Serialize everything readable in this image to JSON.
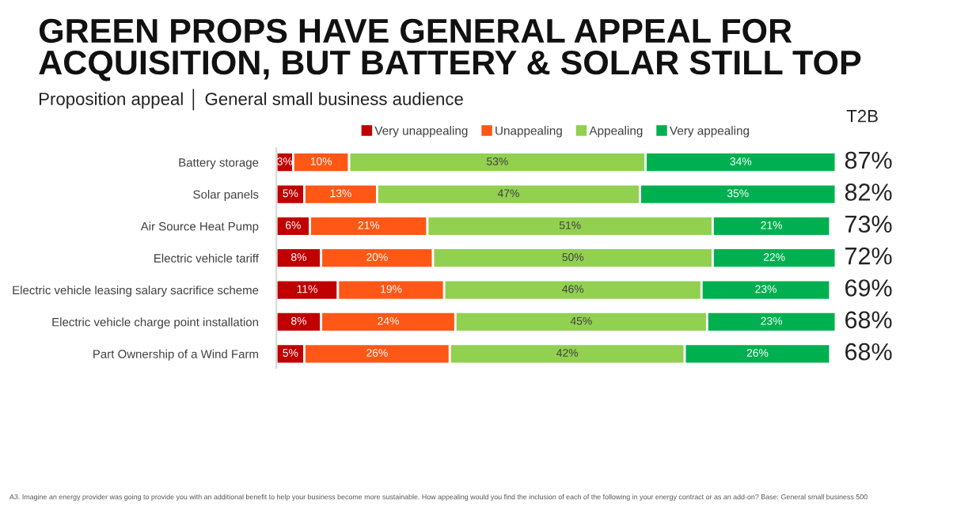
{
  "chart_data": {
    "type": "bar",
    "orientation": "horizontal",
    "stacked": true,
    "title": "GREEN PROPS HAVE GENERAL APPEAL FOR\nACQUISITION, BUT BATTERY & SOLAR STILL TOP",
    "subtitle": "Proposition appeal │ General small business audience",
    "categories": [
      "Battery storage",
      "Solar panels",
      "Air Source Heat Pump",
      "Electric vehicle tariff",
      "Electric vehicle leasing salary sacrifice scheme",
      "Electric vehicle charge point installation",
      "Part Ownership of a Wind Farm"
    ],
    "series": [
      {
        "name": "Very unappealing",
        "color": "#c00000",
        "values": [
          3,
          5,
          6,
          8,
          11,
          8,
          5
        ],
        "value_labels": [
          "3%",
          "5%",
          "6%",
          "8%",
          "11%",
          "8%",
          "5%"
        ]
      },
      {
        "name": "Unappealing",
        "color": "#fe5716",
        "values": [
          10,
          13,
          21,
          20,
          19,
          24,
          26
        ],
        "value_labels": [
          "10%",
          "13%",
          "21%",
          "20%",
          "19%",
          "24%",
          "26%"
        ]
      },
      {
        "name": "Appealing",
        "color": "#92d050",
        "values": [
          53,
          47,
          51,
          50,
          46,
          45,
          42
        ],
        "value_labels": [
          "53%",
          "47%",
          "51%",
          "50%",
          "46%",
          "45%",
          "42%"
        ]
      },
      {
        "name": "Very appealing",
        "color": "#00b050",
        "values": [
          34,
          35,
          21,
          22,
          23,
          23,
          26
        ],
        "value_labels": [
          "34%",
          "35%",
          "21%",
          "22%",
          "23%",
          "23%",
          "26%"
        ]
      }
    ],
    "legend": "top",
    "grid": false,
    "tick_labels": "y",
    "annotations": [
      "T2B",
      "87%",
      "82%",
      "73%",
      "72%",
      "69%",
      "68%",
      "68%",
      "A3. Imagine an energy provider was going to provide you with an additional benefit to help your business become more sustainable. How appealing would you find the inclusion of each of the following in your energy contract or as an add-on? Base: General small business 500"
    ]
  }
}
